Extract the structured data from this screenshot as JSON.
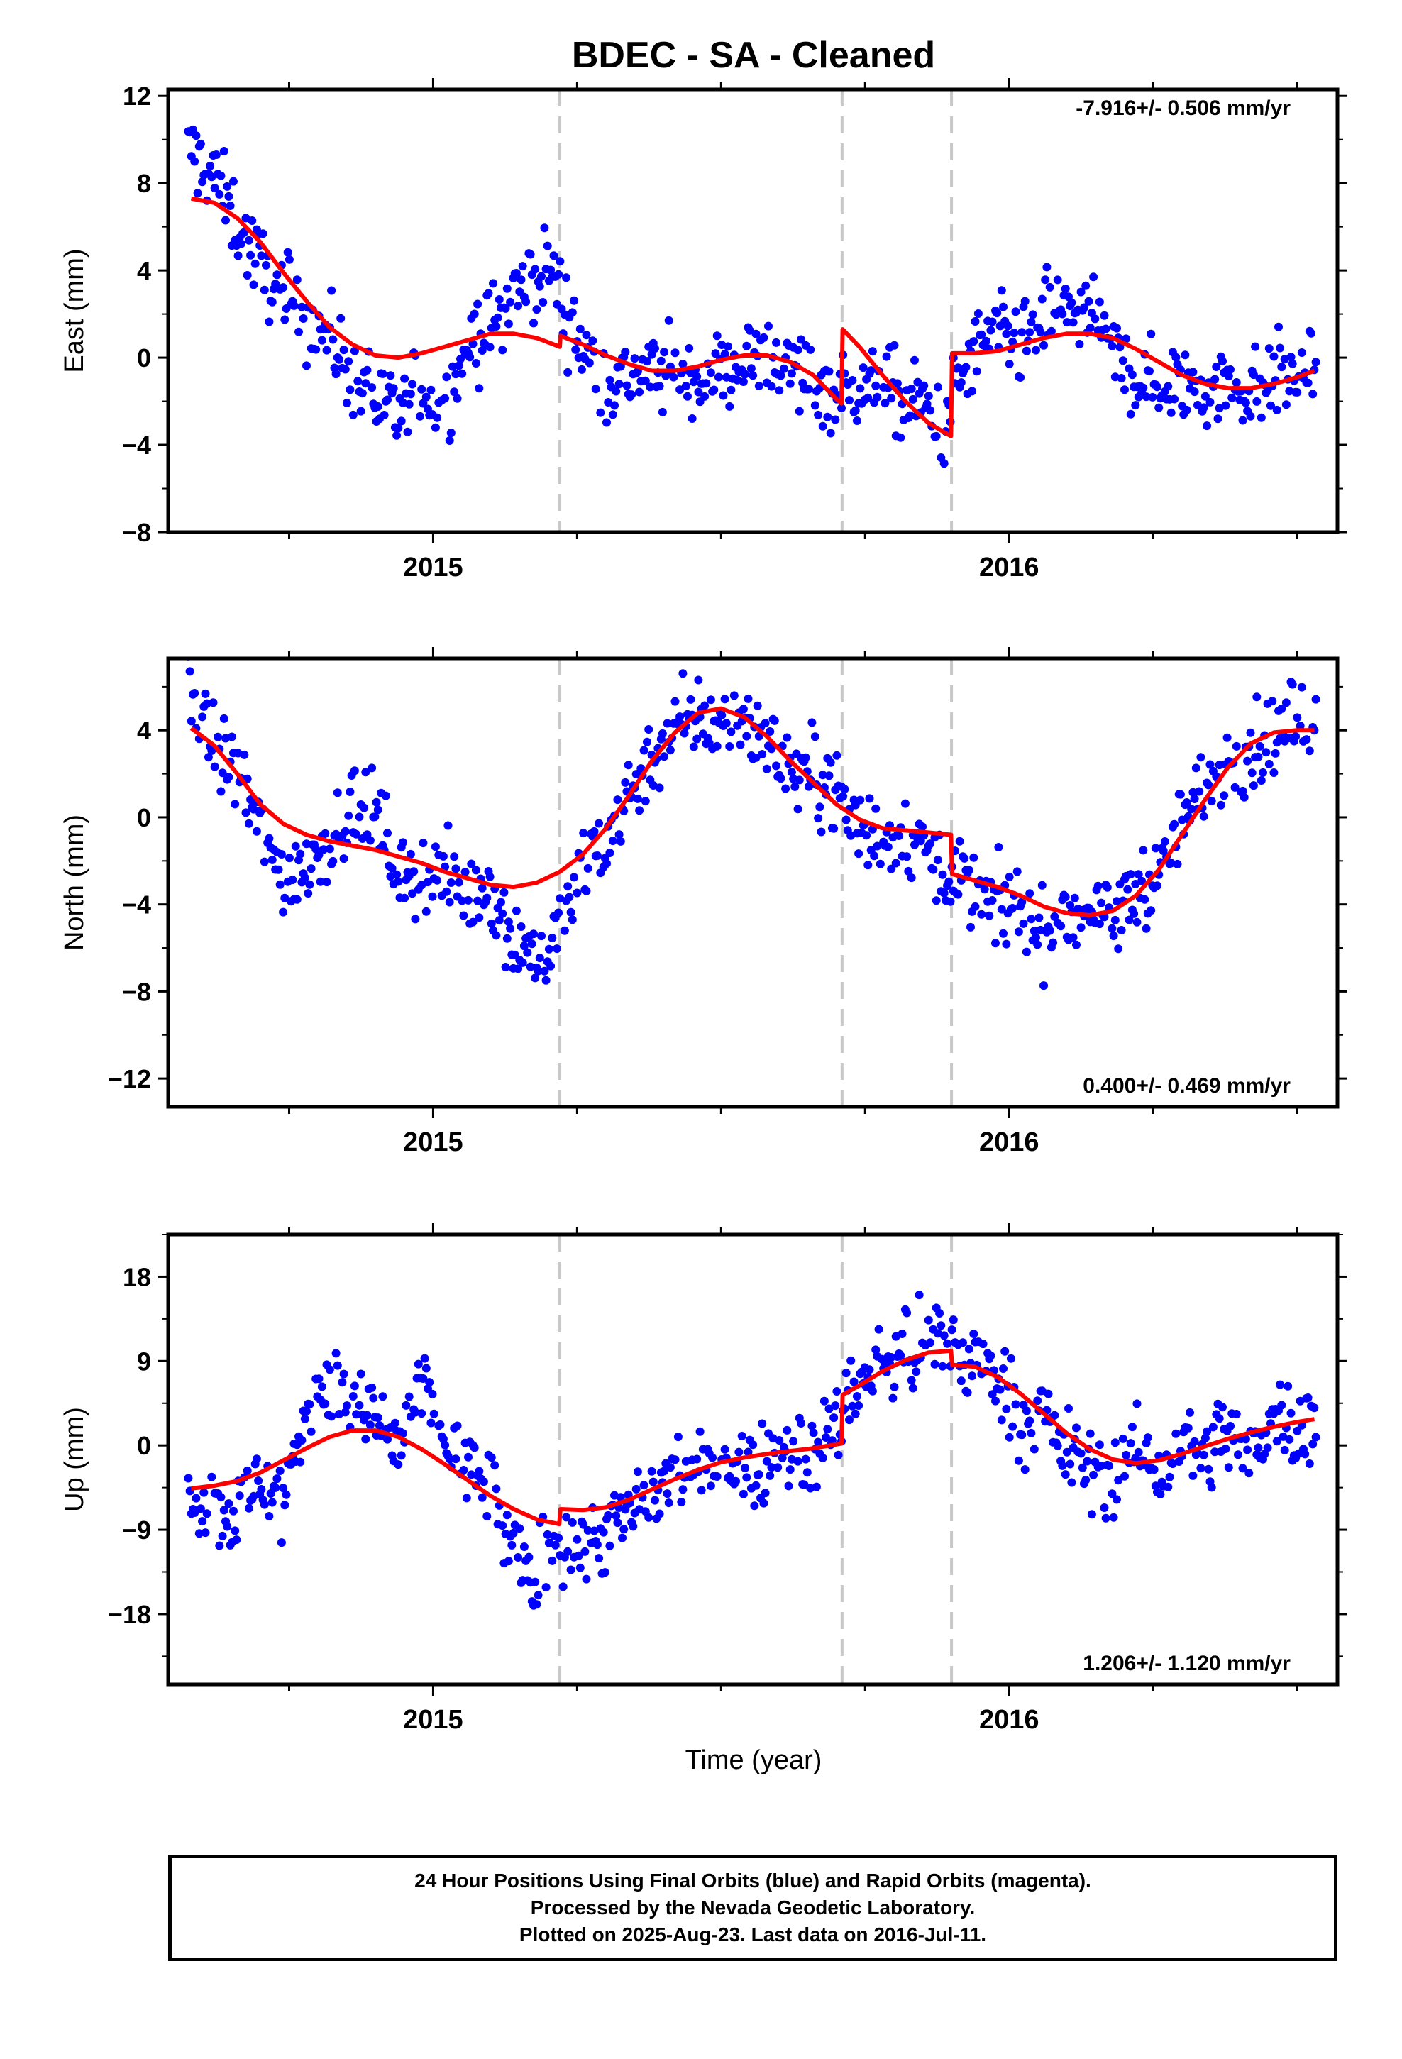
{
  "title": "BDEC  - SA - Cleaned",
  "xlabel": "Time (year)",
  "colors": {
    "points": "#0000ff",
    "model": "#ff0000",
    "breaks": "#c8c8c8",
    "frame": "#000000"
  },
  "footer": {
    "line1": "24 Hour Positions Using Final Orbits (blue) and Rapid Orbits (magenta).",
    "line2": "Processed by the Nevada Geodetic Laboratory.",
    "line3": "Plotted on 2025-Aug-23. Last data on 2016-Jul-11."
  },
  "chart_data": [
    {
      "type": "scatter",
      "component": "East",
      "ylabel": "East (mm)",
      "ylim": [
        -8,
        12.3
      ],
      "yticks": [
        -8,
        -4,
        0,
        4,
        8,
        12
      ],
      "yticklabels": [
        "−8",
        "−4",
        "0",
        "4",
        "8",
        "12"
      ],
      "xlim": [
        2014.54,
        2016.57
      ],
      "xticklabels": [
        "2015",
        "2016"
      ],
      "xticks": [
        2015,
        2016
      ],
      "breaks": [
        2015.22,
        2015.71,
        2015.9
      ],
      "rate": "-7.916+/- 0.506 mm/yr",
      "rate_position": "top-right",
      "model": [
        [
          2014.58,
          7.3
        ],
        [
          2014.62,
          7.1
        ],
        [
          2014.66,
          6.4
        ],
        [
          2014.7,
          5.3
        ],
        [
          2014.74,
          3.9
        ],
        [
          2014.78,
          2.6
        ],
        [
          2014.82,
          1.4
        ],
        [
          2014.86,
          0.6
        ],
        [
          2014.9,
          0.1
        ],
        [
          2014.94,
          0.0
        ],
        [
          2014.98,
          0.2
        ],
        [
          2015.02,
          0.5
        ],
        [
          2015.06,
          0.8
        ],
        [
          2015.1,
          1.1
        ],
        [
          2015.14,
          1.1
        ],
        [
          2015.18,
          0.9
        ],
        [
          2015.22,
          0.5
        ],
        [
          2015.221,
          1.0
        ],
        [
          2015.26,
          0.6
        ],
        [
          2015.3,
          0.1
        ],
        [
          2015.34,
          -0.3
        ],
        [
          2015.38,
          -0.6
        ],
        [
          2015.42,
          -0.6
        ],
        [
          2015.46,
          -0.4
        ],
        [
          2015.5,
          -0.1
        ],
        [
          2015.54,
          0.1
        ],
        [
          2015.58,
          0.1
        ],
        [
          2015.62,
          -0.2
        ],
        [
          2015.66,
          -0.8
        ],
        [
          2015.7,
          -1.9
        ],
        [
          2015.709,
          -2.1
        ],
        [
          2015.711,
          1.3
        ],
        [
          2015.74,
          0.5
        ],
        [
          2015.78,
          -0.8
        ],
        [
          2015.82,
          -2.0
        ],
        [
          2015.86,
          -3.0
        ],
        [
          2015.899,
          -3.6
        ],
        [
          2015.901,
          0.2
        ],
        [
          2015.94,
          0.2
        ],
        [
          2015.98,
          0.3
        ],
        [
          2016.02,
          0.6
        ],
        [
          2016.06,
          0.9
        ],
        [
          2016.1,
          1.1
        ],
        [
          2016.14,
          1.1
        ],
        [
          2016.18,
          0.9
        ],
        [
          2016.22,
          0.4
        ],
        [
          2016.26,
          -0.2
        ],
        [
          2016.3,
          -0.8
        ],
        [
          2016.34,
          -1.2
        ],
        [
          2016.38,
          -1.4
        ],
        [
          2016.42,
          -1.4
        ],
        [
          2016.46,
          -1.2
        ],
        [
          2016.5,
          -0.9
        ],
        [
          2016.53,
          -0.6
        ]
      ],
      "samples": [
        [
          2014.58,
          9.4
        ],
        [
          2014.62,
          8.3
        ],
        [
          2014.66,
          6.1
        ],
        [
          2014.7,
          4.2
        ],
        [
          2014.74,
          2.9
        ],
        [
          2014.78,
          1.8
        ],
        [
          2014.82,
          1.0
        ],
        [
          2014.86,
          -0.8
        ],
        [
          2014.9,
          -1.9
        ],
        [
          2014.94,
          -2.8
        ],
        [
          2014.98,
          -1.5
        ],
        [
          2015.02,
          -2.4
        ],
        [
          2015.06,
          0.6
        ],
        [
          2015.1,
          1.4
        ],
        [
          2015.14,
          2.9
        ],
        [
          2015.18,
          3.8
        ],
        [
          2015.2,
          4.3
        ],
        [
          2015.26,
          0.3
        ],
        [
          2015.3,
          -1.1
        ],
        [
          2015.34,
          -0.9
        ],
        [
          2015.38,
          -0.6
        ],
        [
          2015.42,
          -0.8
        ],
        [
          2015.46,
          -0.9
        ],
        [
          2015.5,
          -0.7
        ],
        [
          2015.54,
          -0.2
        ],
        [
          2015.58,
          0.1
        ],
        [
          2015.62,
          -0.4
        ],
        [
          2015.66,
          -1.1
        ],
        [
          2015.7,
          -1.6
        ],
        [
          2015.74,
          -1.4
        ],
        [
          2015.78,
          -1.3
        ],
        [
          2015.82,
          -2.0
        ],
        [
          2015.86,
          -2.3
        ],
        [
          2015.88,
          -3.3
        ],
        [
          2015.94,
          0.3
        ],
        [
          2015.98,
          0.9
        ],
        [
          2016.02,
          0.4
        ],
        [
          2016.06,
          1.7
        ],
        [
          2016.1,
          2.4
        ],
        [
          2016.14,
          1.9
        ],
        [
          2016.18,
          0.2
        ],
        [
          2016.22,
          -0.9
        ],
        [
          2016.26,
          -1.4
        ],
        [
          2016.3,
          -1.1
        ],
        [
          2016.34,
          -1.6
        ],
        [
          2016.38,
          -1.0
        ],
        [
          2016.42,
          -1.5
        ],
        [
          2016.46,
          -0.7
        ],
        [
          2016.5,
          -0.9
        ],
        [
          2016.53,
          -0.5
        ]
      ]
    },
    {
      "type": "scatter",
      "component": "North",
      "ylabel": "North (mm)",
      "ylim": [
        -13.3,
        7.3
      ],
      "yticks": [
        -12,
        -8,
        -4,
        0,
        4
      ],
      "yticklabels": [
        "−12",
        "−8",
        "−4",
        "0",
        "4"
      ],
      "xlim": [
        2014.54,
        2016.57
      ],
      "xticklabels": [
        "2015",
        "2016"
      ],
      "xticks": [
        2015,
        2016
      ],
      "breaks": [
        2015.22,
        2015.71,
        2015.9
      ],
      "rate": "0.400+/- 0.469 mm/yr",
      "rate_position": "bottom-right",
      "model": [
        [
          2014.58,
          4.1
        ],
        [
          2014.62,
          3.3
        ],
        [
          2014.66,
          2.0
        ],
        [
          2014.7,
          0.6
        ],
        [
          2014.74,
          -0.3
        ],
        [
          2014.78,
          -0.8
        ],
        [
          2014.82,
          -1.1
        ],
        [
          2014.86,
          -1.3
        ],
        [
          2014.9,
          -1.5
        ],
        [
          2014.94,
          -1.8
        ],
        [
          2014.98,
          -2.1
        ],
        [
          2015.02,
          -2.5
        ],
        [
          2015.06,
          -2.8
        ],
        [
          2015.1,
          -3.1
        ],
        [
          2015.14,
          -3.2
        ],
        [
          2015.18,
          -3.0
        ],
        [
          2015.22,
          -2.5
        ],
        [
          2015.26,
          -1.7
        ],
        [
          2015.3,
          -0.5
        ],
        [
          2015.34,
          1.0
        ],
        [
          2015.38,
          2.6
        ],
        [
          2015.42,
          3.9
        ],
        [
          2015.46,
          4.8
        ],
        [
          2015.5,
          5.0
        ],
        [
          2015.54,
          4.6
        ],
        [
          2015.58,
          3.7
        ],
        [
          2015.62,
          2.6
        ],
        [
          2015.66,
          1.6
        ],
        [
          2015.7,
          0.6
        ],
        [
          2015.74,
          -0.1
        ],
        [
          2015.78,
          -0.5
        ],
        [
          2015.82,
          -0.6
        ],
        [
          2015.86,
          -0.7
        ],
        [
          2015.899,
          -0.8
        ],
        [
          2015.901,
          -2.6
        ],
        [
          2015.94,
          -2.9
        ],
        [
          2015.98,
          -3.2
        ],
        [
          2016.02,
          -3.6
        ],
        [
          2016.06,
          -4.1
        ],
        [
          2016.1,
          -4.4
        ],
        [
          2016.14,
          -4.5
        ],
        [
          2016.18,
          -4.3
        ],
        [
          2016.22,
          -3.6
        ],
        [
          2016.26,
          -2.4
        ],
        [
          2016.3,
          -0.8
        ],
        [
          2016.34,
          0.8
        ],
        [
          2016.38,
          2.3
        ],
        [
          2016.42,
          3.4
        ],
        [
          2016.46,
          3.9
        ],
        [
          2016.5,
          4.0
        ],
        [
          2016.53,
          4.0
        ]
      ],
      "samples": [
        [
          2014.58,
          5.5
        ],
        [
          2014.62,
          3.3
        ],
        [
          2014.66,
          1.9
        ],
        [
          2014.7,
          -0.3
        ],
        [
          2014.74,
          -3.1
        ],
        [
          2014.78,
          -2.0
        ],
        [
          2014.82,
          -1.0
        ],
        [
          2014.86,
          0.5
        ],
        [
          2014.9,
          0.1
        ],
        [
          2014.94,
          -2.5
        ],
        [
          2014.98,
          -2.9
        ],
        [
          2015.02,
          -2.7
        ],
        [
          2015.06,
          -3.6
        ],
        [
          2015.1,
          -3.0
        ],
        [
          2015.14,
          -5.8
        ],
        [
          2015.18,
          -6.2
        ],
        [
          2015.2,
          -6.6
        ],
        [
          2015.26,
          -2.4
        ],
        [
          2015.3,
          -0.9
        ],
        [
          2015.34,
          1.1
        ],
        [
          2015.38,
          2.9
        ],
        [
          2015.42,
          4.0
        ],
        [
          2015.46,
          4.6
        ],
        [
          2015.5,
          4.2
        ],
        [
          2015.54,
          4.7
        ],
        [
          2015.58,
          3.4
        ],
        [
          2015.62,
          2.3
        ],
        [
          2015.66,
          1.9
        ],
        [
          2015.7,
          1.3
        ],
        [
          2015.74,
          -0.3
        ],
        [
          2015.78,
          -1.1
        ],
        [
          2015.82,
          -0.7
        ],
        [
          2015.86,
          -1.5
        ],
        [
          2015.88,
          -1.9
        ],
        [
          2015.94,
          -3.6
        ],
        [
          2015.98,
          -4.1
        ],
        [
          2016.02,
          -4.3
        ],
        [
          2016.06,
          -5.3
        ],
        [
          2016.1,
          -4.6
        ],
        [
          2016.14,
          -4.1
        ],
        [
          2016.18,
          -4.9
        ],
        [
          2016.22,
          -3.2
        ],
        [
          2016.26,
          -2.8
        ],
        [
          2016.3,
          -0.1
        ],
        [
          2016.34,
          1.3
        ],
        [
          2016.38,
          2.7
        ],
        [
          2016.42,
          3.1
        ],
        [
          2016.46,
          3.8
        ],
        [
          2016.5,
          4.4
        ],
        [
          2016.53,
          4.4
        ]
      ]
    },
    {
      "type": "scatter",
      "component": "Up",
      "ylabel": "Up (mm)",
      "ylim": [
        -25.5,
        22.5
      ],
      "yticks": [
        -18,
        -9,
        0,
        9,
        18
      ],
      "yticklabels": [
        "−18",
        "−9",
        "0",
        "9",
        "18"
      ],
      "xlim": [
        2014.54,
        2016.57
      ],
      "xticklabels": [
        "2015",
        "2016"
      ],
      "xticks": [
        2015,
        2016
      ],
      "breaks": [
        2015.22,
        2015.71,
        2015.9
      ],
      "rate": "1.206+/- 1.120 mm/yr",
      "rate_position": "bottom-right",
      "model": [
        [
          2014.58,
          -4.6
        ],
        [
          2014.62,
          -4.3
        ],
        [
          2014.66,
          -3.8
        ],
        [
          2014.7,
          -2.9
        ],
        [
          2014.74,
          -1.6
        ],
        [
          2014.78,
          -0.3
        ],
        [
          2014.82,
          0.9
        ],
        [
          2014.86,
          1.6
        ],
        [
          2014.9,
          1.6
        ],
        [
          2014.94,
          0.9
        ],
        [
          2014.98,
          -0.4
        ],
        [
          2015.02,
          -2.0
        ],
        [
          2015.06,
          -3.7
        ],
        [
          2015.1,
          -5.4
        ],
        [
          2015.14,
          -6.8
        ],
        [
          2015.18,
          -7.9
        ],
        [
          2015.219,
          -8.4
        ],
        [
          2015.221,
          -6.8
        ],
        [
          2015.26,
          -6.9
        ],
        [
          2015.3,
          -6.6
        ],
        [
          2015.34,
          -5.8
        ],
        [
          2015.38,
          -4.7
        ],
        [
          2015.42,
          -3.6
        ],
        [
          2015.46,
          -2.6
        ],
        [
          2015.5,
          -1.8
        ],
        [
          2015.54,
          -1.3
        ],
        [
          2015.58,
          -0.9
        ],
        [
          2015.62,
          -0.6
        ],
        [
          2015.66,
          -0.3
        ],
        [
          2015.709,
          0.2
        ],
        [
          2015.711,
          5.4
        ],
        [
          2015.74,
          6.4
        ],
        [
          2015.78,
          7.9
        ],
        [
          2015.82,
          9.1
        ],
        [
          2015.86,
          9.9
        ],
        [
          2015.899,
          10.1
        ],
        [
          2015.901,
          8.6
        ],
        [
          2015.94,
          8.4
        ],
        [
          2015.98,
          7.3
        ],
        [
          2016.02,
          5.5
        ],
        [
          2016.06,
          3.4
        ],
        [
          2016.1,
          1.3
        ],
        [
          2016.14,
          -0.4
        ],
        [
          2016.18,
          -1.5
        ],
        [
          2016.22,
          -1.9
        ],
        [
          2016.26,
          -1.6
        ],
        [
          2016.3,
          -0.9
        ],
        [
          2016.34,
          -0.1
        ],
        [
          2016.38,
          0.7
        ],
        [
          2016.42,
          1.4
        ],
        [
          2016.46,
          2.0
        ],
        [
          2016.5,
          2.5
        ],
        [
          2016.53,
          2.8
        ]
      ],
      "samples": [
        [
          2014.58,
          -5.5
        ],
        [
          2014.62,
          -6.6
        ],
        [
          2014.66,
          -7.4
        ],
        [
          2014.7,
          -3.2
        ],
        [
          2014.74,
          -6.3
        ],
        [
          2014.78,
          4.4
        ],
        [
          2014.82,
          7.2
        ],
        [
          2014.86,
          3.5
        ],
        [
          2014.9,
          2.8
        ],
        [
          2014.94,
          -0.5
        ],
        [
          2014.98,
          6.5
        ],
        [
          2015.02,
          0.9
        ],
        [
          2015.06,
          -3.1
        ],
        [
          2015.1,
          -4.8
        ],
        [
          2015.14,
          -11.8
        ],
        [
          2015.18,
          -15.3
        ],
        [
          2015.2,
          -10.2
        ],
        [
          2015.26,
          -10.7
        ],
        [
          2015.3,
          -9.2
        ],
        [
          2015.34,
          -7.3
        ],
        [
          2015.38,
          -5.7
        ],
        [
          2015.42,
          -2.3
        ],
        [
          2015.46,
          -3.5
        ],
        [
          2015.5,
          -0.8
        ],
        [
          2015.54,
          -2.8
        ],
        [
          2015.58,
          -1.2
        ],
        [
          2015.62,
          0.2
        ],
        [
          2015.66,
          -1.0
        ],
        [
          2015.7,
          2.1
        ],
        [
          2015.74,
          7.3
        ],
        [
          2015.78,
          8.2
        ],
        [
          2015.82,
          10.4
        ],
        [
          2015.86,
          9.5
        ],
        [
          2015.88,
          11.2
        ],
        [
          2015.94,
          8.7
        ],
        [
          2015.98,
          7.8
        ],
        [
          2016.02,
          3.0
        ],
        [
          2016.06,
          2.7
        ],
        [
          2016.1,
          -0.5
        ],
        [
          2016.14,
          -2.3
        ],
        [
          2016.18,
          -3.5
        ],
        [
          2016.22,
          -0.4
        ],
        [
          2016.26,
          -3.6
        ],
        [
          2016.3,
          0.7
        ],
        [
          2016.34,
          -1.2
        ],
        [
          2016.38,
          1.9
        ],
        [
          2016.42,
          -2.1
        ],
        [
          2016.46,
          4.4
        ],
        [
          2016.5,
          1.3
        ],
        [
          2016.53,
          2.9
        ]
      ]
    }
  ]
}
